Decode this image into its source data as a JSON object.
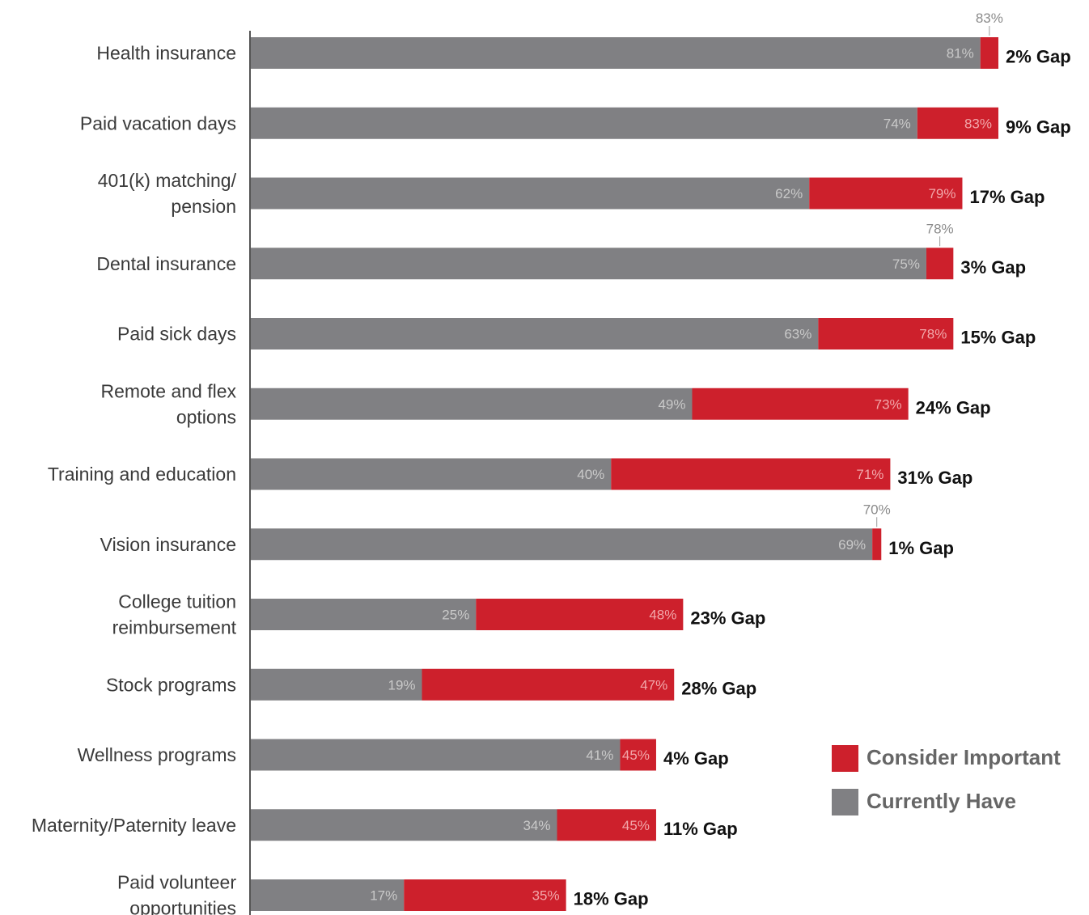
{
  "chart_data": {
    "type": "bar",
    "orientation": "horizontal",
    "categories": [
      "Health insurance",
      "Paid vacation days",
      "401(k) matching/\npension",
      "Dental insurance",
      "Paid sick days",
      "Remote and flex\noptions",
      "Training and education",
      "Vision insurance",
      "College tuition\nreimbursement",
      "Stock programs",
      "Wellness programs",
      "Maternity/Paternity leave",
      "Paid volunteer\nopportunities"
    ],
    "series": [
      {
        "name": "Currently Have",
        "color": "#808083",
        "values": [
          81,
          74,
          62,
          75,
          63,
          49,
          40,
          69,
          25,
          19,
          41,
          34,
          17
        ]
      },
      {
        "name": "Consider Important",
        "color": "#cd202c",
        "values": [
          83,
          83,
          79,
          78,
          78,
          73,
          71,
          70,
          48,
          47,
          45,
          45,
          35
        ]
      }
    ],
    "gap_labels": [
      "2% Gap",
      "9% Gap",
      "17% Gap",
      "3% Gap",
      "15% Gap",
      "24% Gap",
      "31% Gap",
      "1% Gap",
      "23% Gap",
      "28% Gap",
      "4% Gap",
      "11% Gap",
      "18% Gap"
    ],
    "xlim": [
      0,
      83
    ],
    "legend_position": "bottom-right"
  },
  "legend": {
    "items": [
      {
        "label": "Consider Important",
        "color": "#cd202c"
      },
      {
        "label": "Currently Have",
        "color": "#808083"
      }
    ]
  }
}
